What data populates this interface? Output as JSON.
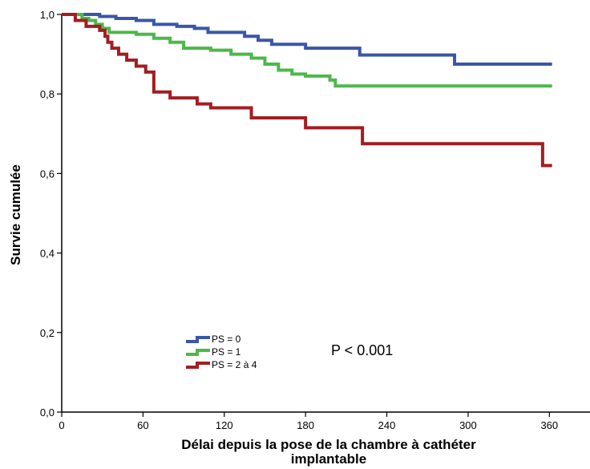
{
  "chart_data": {
    "type": "line",
    "step": true,
    "xlabel_line1": "Délai depuis la pose de la chambre à cathéter",
    "xlabel_line2": "implantable",
    "ylabel": "Survie cumulée",
    "xlim": [
      0,
      390
    ],
    "ylim": [
      0,
      1.0
    ],
    "x_ticks": [
      0,
      60,
      120,
      180,
      240,
      300,
      360
    ],
    "x_tick_labels": [
      "0",
      "60",
      "120",
      "180",
      "240",
      "300",
      "360"
    ],
    "y_ticks": [
      0,
      0.2,
      0.4,
      0.6,
      0.8,
      1.0
    ],
    "y_tick_labels": [
      "0,0",
      "0,2",
      "0,4",
      "0,6",
      "0,8",
      "1,0"
    ],
    "grid": false,
    "legend_position": "lower-left",
    "annotation": "P < 0.001",
    "series": [
      {
        "name": "PS = 0",
        "color": "#3a56a8",
        "x": [
          0,
          10,
          28,
          40,
          55,
          68,
          85,
          98,
          108,
          135,
          145,
          155,
          180,
          220,
          290,
          362
        ],
        "y": [
          1.0,
          1.0,
          0.995,
          0.99,
          0.985,
          0.975,
          0.97,
          0.965,
          0.955,
          0.945,
          0.935,
          0.925,
          0.915,
          0.898,
          0.875,
          0.875
        ]
      },
      {
        "name": "PS = 1",
        "color": "#4cb84a",
        "x": [
          0,
          15,
          20,
          25,
          30,
          35,
          55,
          68,
          80,
          90,
          110,
          125,
          140,
          150,
          160,
          170,
          180,
          198,
          202,
          362
        ],
        "y": [
          1.0,
          0.99,
          0.985,
          0.975,
          0.965,
          0.955,
          0.95,
          0.94,
          0.93,
          0.915,
          0.91,
          0.9,
          0.89,
          0.875,
          0.86,
          0.85,
          0.845,
          0.835,
          0.82,
          0.82
        ]
      },
      {
        "name": "PS = 2 à 4",
        "color": "#a11e22",
        "x": [
          0,
          10,
          18,
          28,
          32,
          34,
          37,
          42,
          48,
          55,
          62,
          68,
          80,
          100,
          110,
          140,
          180,
          222,
          335,
          355,
          362
        ],
        "y": [
          1.0,
          0.985,
          0.97,
          0.96,
          0.945,
          0.93,
          0.915,
          0.9,
          0.885,
          0.87,
          0.855,
          0.805,
          0.79,
          0.775,
          0.765,
          0.74,
          0.715,
          0.675,
          0.675,
          0.62,
          0.62
        ]
      }
    ]
  }
}
